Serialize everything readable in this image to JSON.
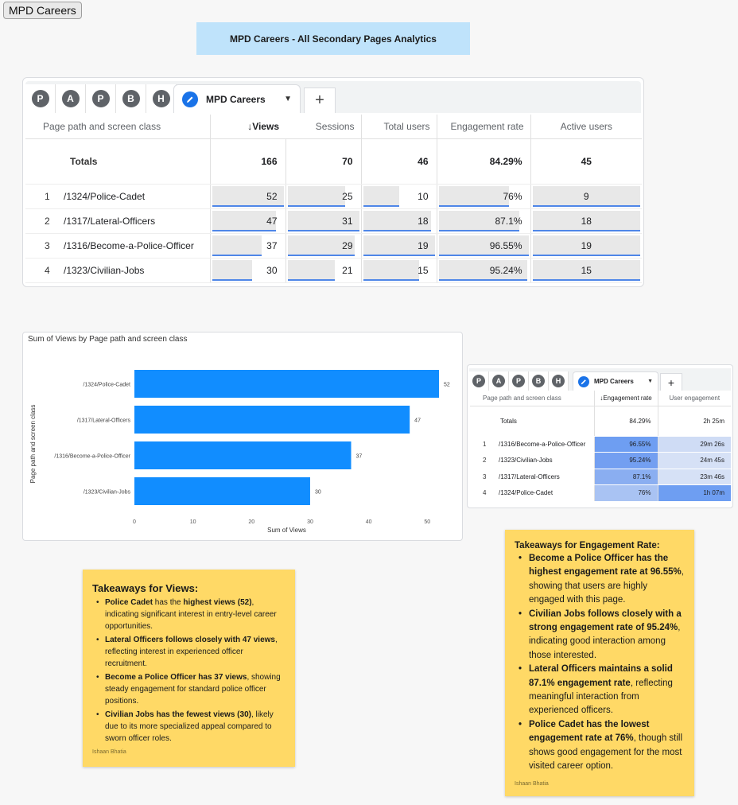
{
  "page_chip": "MPD Careers",
  "banner": "MPD Careers - All Secondary Pages Analytics",
  "main_table": {
    "tabs": [
      "P",
      "A",
      "P",
      "B",
      "H"
    ],
    "active_tab": "MPD Careers",
    "add_tab": "+",
    "headers": {
      "dimension": "Page path and screen class",
      "views": "↓Views",
      "sessions": "Sessions",
      "total_users": "Total users",
      "engagement_rate": "Engagement rate",
      "active_users": "Active users"
    },
    "totals": {
      "label": "Totals",
      "views": "166",
      "sessions": "70",
      "total_users": "46",
      "engagement_rate": "84.29%",
      "active_users": "45"
    },
    "rows": [
      {
        "idx": "1",
        "path": "/1324/Police-Cadet",
        "views": "52",
        "views_f": 1.0,
        "sessions": "25",
        "sessions_f": 0.81,
        "total_users": "10",
        "total_users_f": 0.53,
        "engagement_rate": "76%",
        "engagement_rate_f": 0.79,
        "active_users": "9",
        "active_users_f": 1.0
      },
      {
        "idx": "2",
        "path": "/1317/Lateral-Officers",
        "views": "47",
        "views_f": 0.9,
        "sessions": "31",
        "sessions_f": 1.0,
        "total_users": "18",
        "total_users_f": 0.95,
        "engagement_rate": "87.1%",
        "engagement_rate_f": 0.9,
        "active_users": "18",
        "active_users_f": 1.0
      },
      {
        "idx": "3",
        "path": "/1316/Become-a-Police-Officer",
        "views": "37",
        "views_f": 0.71,
        "sessions": "29",
        "sessions_f": 0.94,
        "total_users": "19",
        "total_users_f": 1.0,
        "engagement_rate": "96.55%",
        "engagement_rate_f": 1.0,
        "active_users": "19",
        "active_users_f": 1.0
      },
      {
        "idx": "4",
        "path": "/1323/Civilian-Jobs",
        "views": "30",
        "views_f": 0.58,
        "sessions": "21",
        "sessions_f": 0.68,
        "total_users": "15",
        "total_users_f": 0.79,
        "engagement_rate": "95.24%",
        "engagement_rate_f": 0.99,
        "active_users": "15",
        "active_users_f": 1.0
      }
    ]
  },
  "chart_data": {
    "type": "bar",
    "orientation": "horizontal",
    "title": "Sum of Views by Page path and screen class",
    "xlabel": "Sum of Views",
    "ylabel": "Page path and screen class",
    "categories": [
      "/1324/Police-Cadet",
      "/1317/Lateral-Officers",
      "/1316/Become-a-Police-Officer",
      "/1323/Civilian-Jobs"
    ],
    "values": [
      52,
      47,
      37,
      30
    ],
    "xticks": [
      0,
      10,
      20,
      30,
      40,
      50
    ],
    "xlim": [
      0,
      52
    ],
    "bar_color": "#118dff"
  },
  "engagement_table": {
    "tabs": [
      "P",
      "A",
      "P",
      "B",
      "H"
    ],
    "active_tab": "MPD Careers",
    "add_tab": "+",
    "headers": {
      "dimension": "Page path and screen class",
      "engagement_rate": "↓Engagement rate",
      "user_engagement": "User engagement"
    },
    "totals": {
      "label": "Totals",
      "engagement_rate": "84.29%",
      "user_engagement": "2h 25m"
    },
    "rows": [
      {
        "idx": "1",
        "path": "/1316/Become-a-Police-Officer",
        "engagement_rate": "96.55%",
        "user_engagement": "29m 26s",
        "er_color": "#6e9ef2",
        "ue_color": "#cfdcf5"
      },
      {
        "idx": "2",
        "path": "/1323/Civilian-Jobs",
        "engagement_rate": "95.24%",
        "user_engagement": "24m 45s",
        "er_color": "#739ff1",
        "ue_color": "#d6e1f6"
      },
      {
        "idx": "3",
        "path": "/1317/Lateral-Officers",
        "engagement_rate": "87.1%",
        "user_engagement": "23m 46s",
        "er_color": "#8aaef1",
        "ue_color": "#d6e1f6"
      },
      {
        "idx": "4",
        "path": "/1324/Police-Cadet",
        "engagement_rate": "76%",
        "user_engagement": "1h 07m",
        "er_color": "#a9c3f3",
        "ue_color": "#6e9ef2"
      }
    ]
  },
  "views_note": {
    "title": "Takeaways for Views:",
    "items": [
      {
        "b1": "Police Cadet",
        "t1": " has the ",
        "b2": "highest views (52)",
        "t2": ", indicating significant interest in entry-level career opportunities."
      },
      {
        "b1": "Lateral Officers follows closely with 47 views",
        "t1": ", reflecting interest in experienced officer recruitment.",
        "b2": "",
        "t2": ""
      },
      {
        "b1": "Become a Police Officer has 37 views",
        "t1": ", showing steady engagement for standard police officer positions.",
        "b2": "",
        "t2": ""
      },
      {
        "b1": "Civilian Jobs has the fewest views (30)",
        "t1": ", likely due to its more specialized appeal compared to sworn officer roles.",
        "b2": "",
        "t2": ""
      }
    ],
    "signature": "Ishaan Bhatia"
  },
  "engagement_note": {
    "title": "Takeaways for Engagement Rate:",
    "items": [
      {
        "b1": "Become a Police Officer has the highest engagement rate at 96.55%",
        "t1": ", showing that users are highly engaged with this page."
      },
      {
        "b1": "Civilian Jobs follows closely with a strong engagement rate of 95.24%",
        "t1": ", indicating good interaction among those interested."
      },
      {
        "b1": "Lateral Officers maintains a solid 87.1% engagement rate",
        "t1": ", reflecting meaningful interaction from experienced officers."
      },
      {
        "b1": "Police Cadet has the lowest engagement rate at 76%",
        "t1": ", though still shows good engagement for the most visited career option."
      }
    ],
    "signature": "Ishaan Bhatia"
  }
}
